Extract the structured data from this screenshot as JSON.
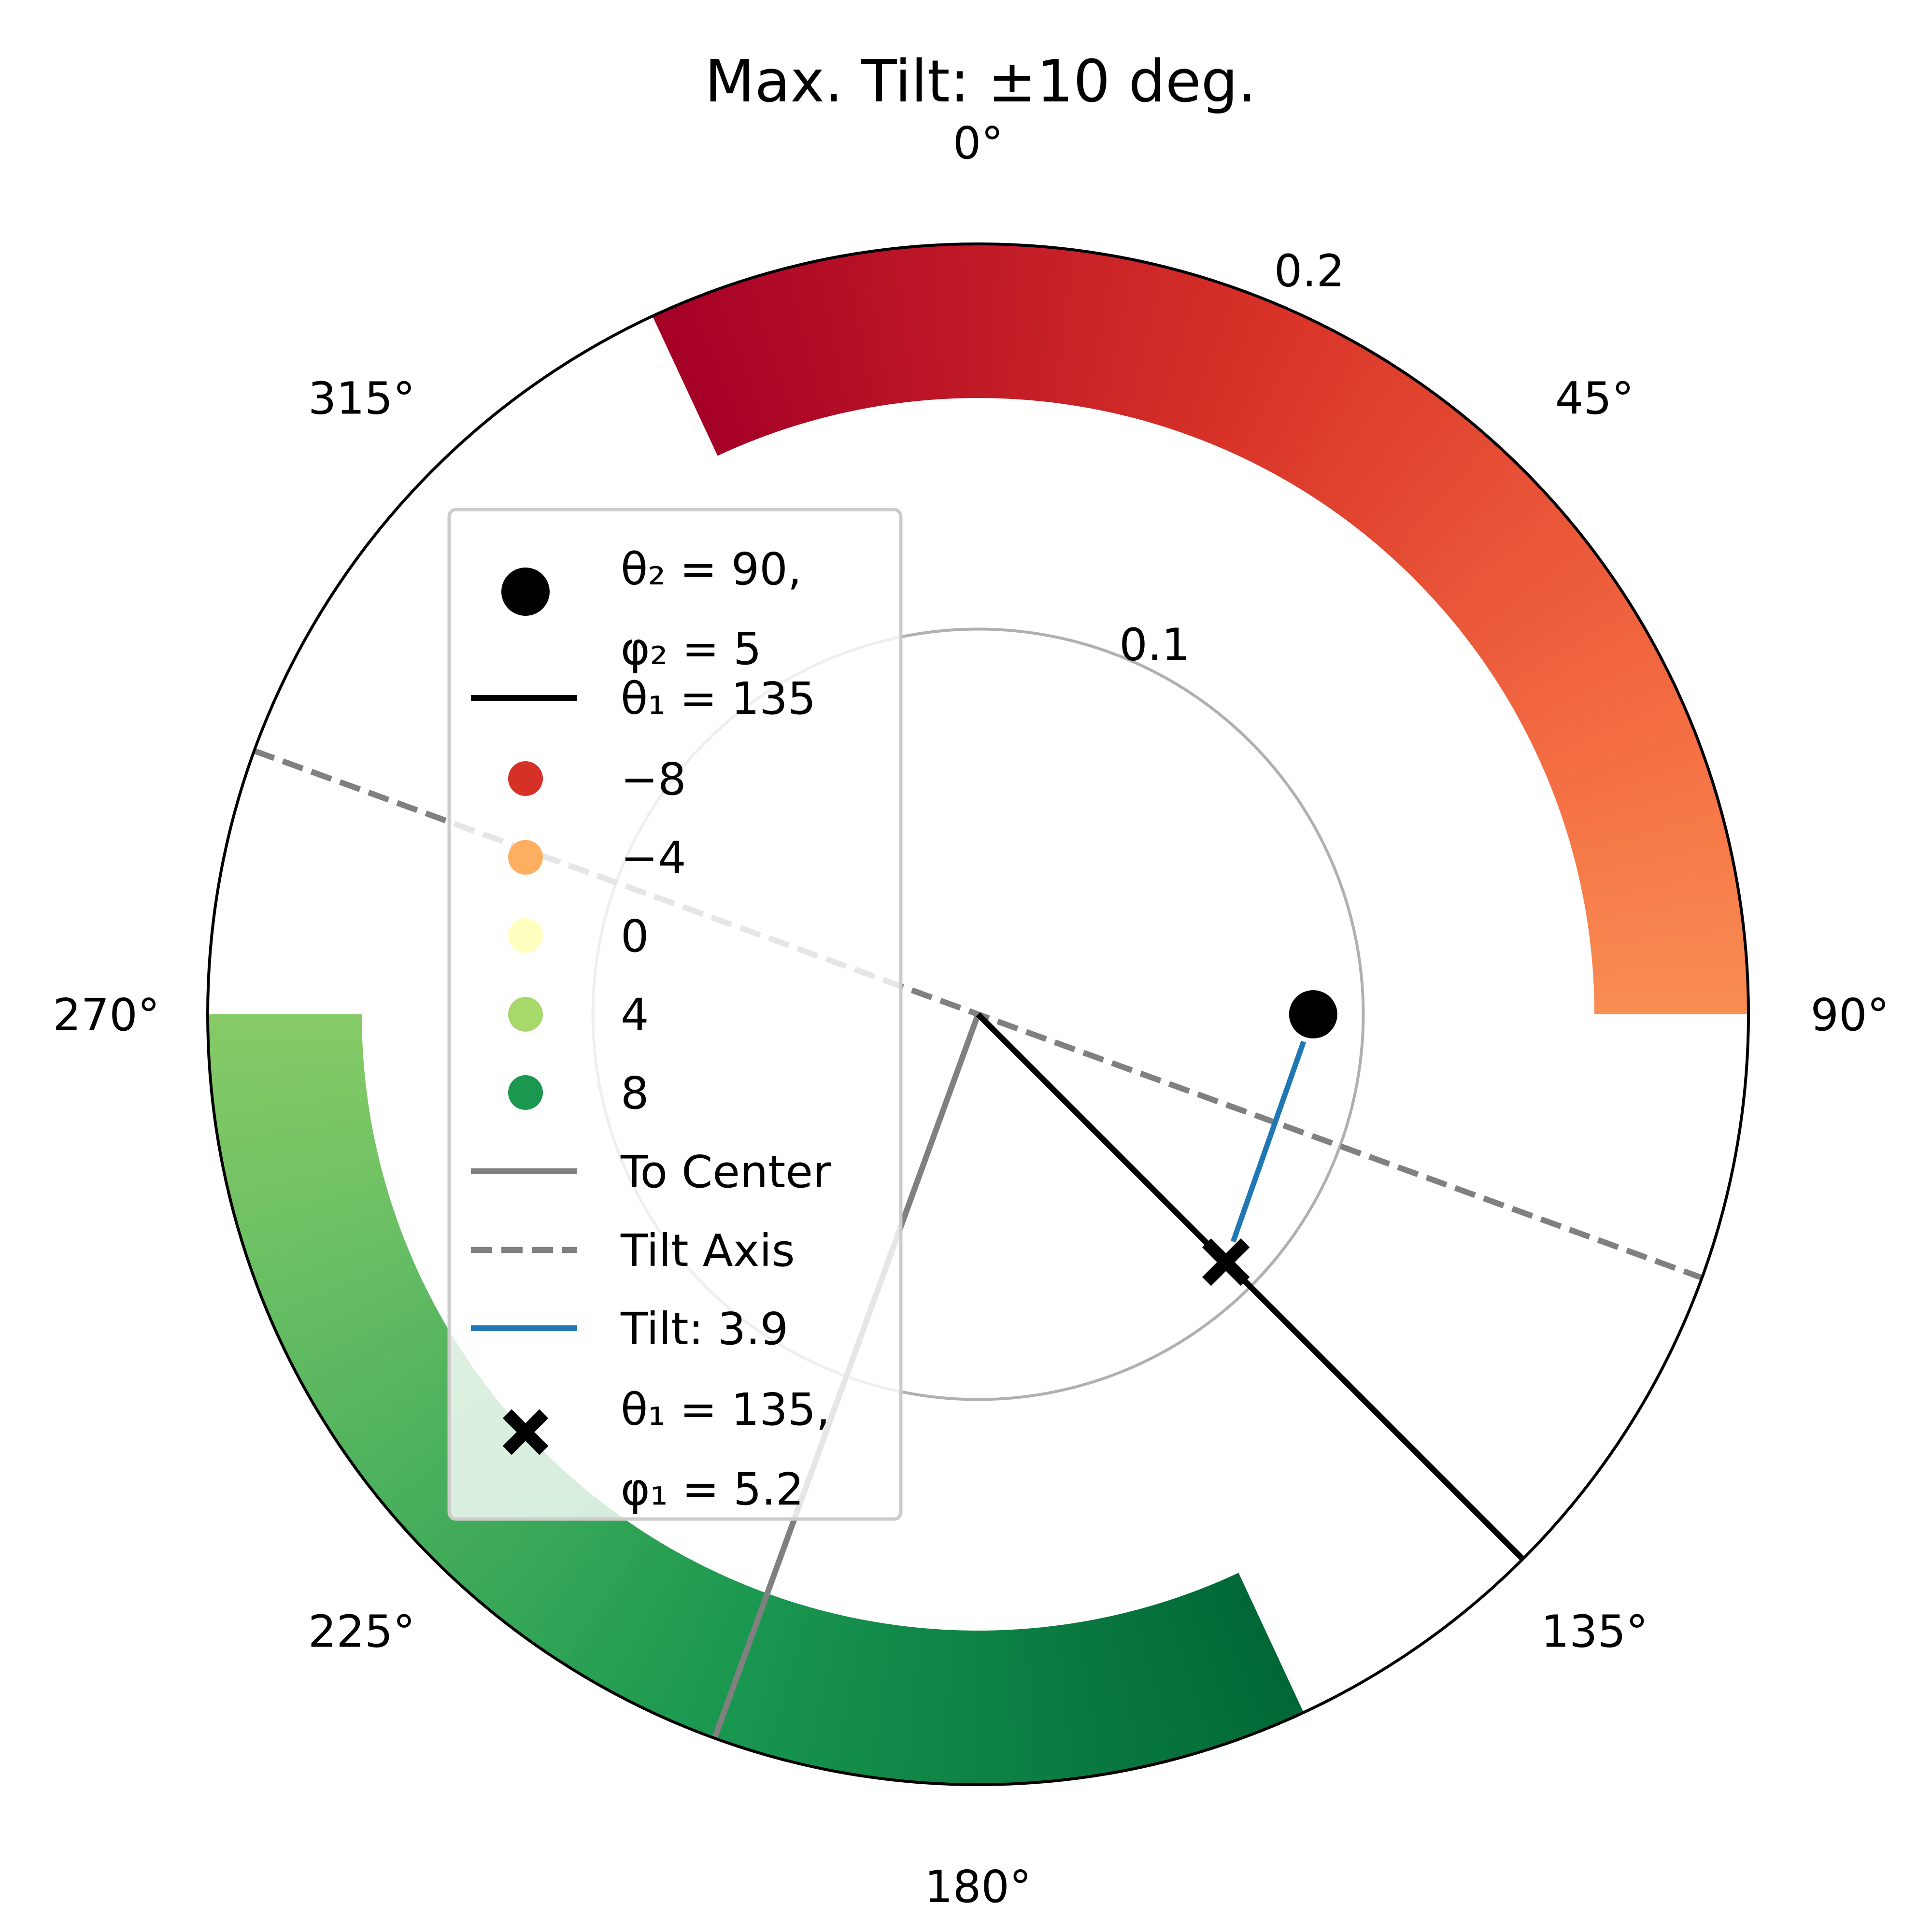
{
  "colors": {
    "background": "#ffffff",
    "axis_line": "#000000",
    "grid_ring": "#b0b0b0",
    "theta1_line": "#000000",
    "to_center_line": "#808080",
    "tilt_axis_line": "#808080",
    "tilt_line": "#1f77b4",
    "legend_frame": "#cccccc",
    "colormap": [
      "#a50026",
      "#d73027",
      "#f46d43",
      "#fdae61",
      "#fee08b",
      "#ffffbf",
      "#d9ef8b",
      "#a6d96a",
      "#66bd63",
      "#1a9850",
      "#006837"
    ]
  },
  "chart_data": {
    "type": "polar",
    "title": "Max. Tilt: ±10 deg.",
    "theta_direction": "clockwise",
    "theta_zero": "north",
    "theta_tick_labels": [
      "0°",
      "45°",
      "90°",
      "135°",
      "180°",
      "225°",
      "270°",
      "315°"
    ],
    "theta_ticks_deg": [
      0,
      45,
      90,
      135,
      180,
      225,
      270,
      315
    ],
    "r_tick_labels": [
      "0.1",
      "0.2"
    ],
    "r_ticks": [
      0.1,
      0.2
    ],
    "r_label_angle_deg": 22.5,
    "rlim": [
      0,
      0.2
    ],
    "color_scale": {
      "min": -10,
      "max": 10
    },
    "tilt_bands": [
      {
        "theta_start_deg": -25,
        "theta_end_deg": 90,
        "r_inner": 0.16,
        "r_outer": 0.2,
        "value_start": -10,
        "value_end": -5
      },
      {
        "theta_start_deg": 155,
        "theta_end_deg": 270,
        "r_inner": 0.16,
        "r_outer": 0.2,
        "value_start": 10,
        "value_end": 5
      }
    ],
    "tilt_axis": {
      "theta_deg": 110,
      "style": "dashed"
    },
    "to_center": {
      "theta_deg": 200,
      "r": 0.2
    },
    "theta1_line": {
      "theta_deg": 135,
      "r": 0.2
    },
    "point_2": {
      "theta_deg": 90,
      "r": 0.087
    },
    "point_1": {
      "theta_deg": 135,
      "r": 0.091
    },
    "legend": {
      "location": "upper-left",
      "entries": [
        {
          "kind": "marker-dot",
          "color": "#000000",
          "text": "θ₂ = 90,",
          "text2": "φ₂ = 5"
        },
        {
          "kind": "line",
          "color": "#000000",
          "text": "θ₁ = 135"
        },
        {
          "kind": "dot",
          "color": "#d73027",
          "text": "−8"
        },
        {
          "kind": "dot",
          "color": "#fdae61",
          "text": "−4"
        },
        {
          "kind": "dot",
          "color": "#ffffbf",
          "text": "0"
        },
        {
          "kind": "dot",
          "color": "#a6d96a",
          "text": "4"
        },
        {
          "kind": "dot",
          "color": "#1a9850",
          "text": "8"
        },
        {
          "kind": "line",
          "color": "#808080",
          "text": "To Center"
        },
        {
          "kind": "dashed",
          "color": "#808080",
          "text": "Tilt Axis"
        },
        {
          "kind": "line",
          "color": "#1f77b4",
          "text": "Tilt: 3.9"
        },
        {
          "kind": "marker-x",
          "color": "#000000",
          "text": "θ₁ = 135,",
          "text2": "φ₁ = 5.2"
        }
      ]
    }
  }
}
